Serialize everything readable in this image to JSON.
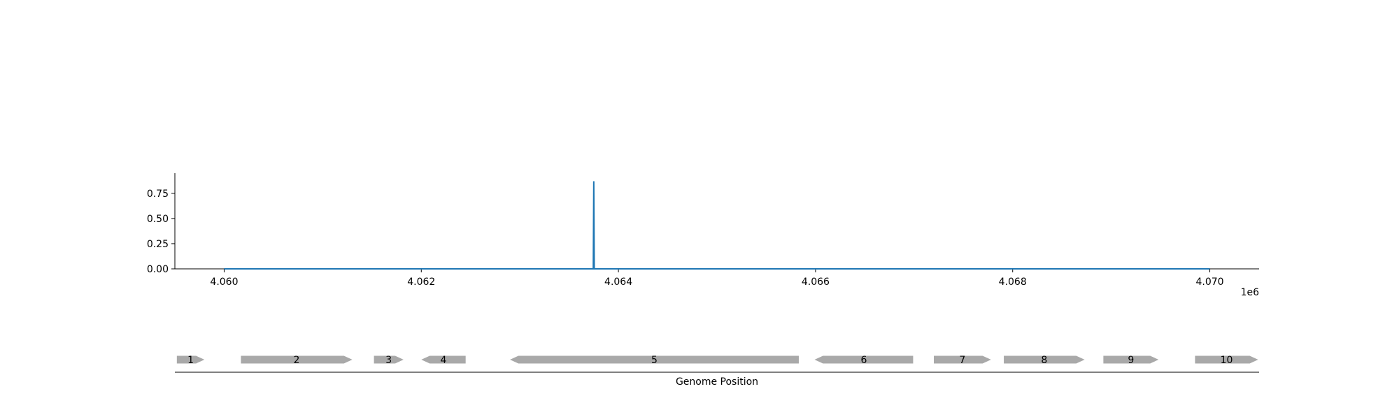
{
  "chart_data": [
    {
      "type": "line",
      "title": "",
      "xlabel": "",
      "ylabel": "",
      "x_offset_label": "1e6",
      "xlim": [
        4059500,
        4070500
      ],
      "ylim": [
        0,
        0.95
      ],
      "x_ticks": [
        4060000,
        4062000,
        4064000,
        4066000,
        4068000,
        4070000
      ],
      "x_tick_labels": [
        "4.060",
        "4.062",
        "4.064",
        "4.066",
        "4.068",
        "4.070"
      ],
      "y_ticks": [
        0,
        0.25,
        0.5,
        0.75
      ],
      "y_tick_labels": [
        "0.00",
        "0.25",
        "0.50",
        "0.75"
      ],
      "grid": false,
      "series": [
        {
          "color": "#1f77b4",
          "x": [
            4060000,
            4063745,
            4063750,
            4063755,
            4070000
          ],
          "y": [
            0,
            0,
            0.87,
            0,
            0
          ]
        }
      ]
    },
    {
      "type": "gene-track",
      "xlabel": "Genome Position",
      "genes": [
        {
          "label": "1",
          "start": 4059520,
          "end": 4059800,
          "strand": "+",
          "color": "#a9a9a9"
        },
        {
          "label": "2",
          "start": 4060170,
          "end": 4061300,
          "strand": "+",
          "color": "#a9a9a9"
        },
        {
          "label": "3",
          "start": 4061520,
          "end": 4061820,
          "strand": "+",
          "color": "#a9a9a9"
        },
        {
          "label": "4",
          "start": 4062000,
          "end": 4062450,
          "strand": "-",
          "color": "#a9a9a9"
        },
        {
          "label": "5",
          "start": 4062900,
          "end": 4065830,
          "strand": "-",
          "color": "#a9a9a9"
        },
        {
          "label": "6",
          "start": 4065990,
          "end": 4066990,
          "strand": "-",
          "color": "#a9a9a9"
        },
        {
          "label": "7",
          "start": 4067200,
          "end": 4067780,
          "strand": "+",
          "color": "#a9a9a9"
        },
        {
          "label": "8",
          "start": 4067910,
          "end": 4068730,
          "strand": "+",
          "color": "#a9a9a9"
        },
        {
          "label": "9",
          "start": 4068920,
          "end": 4069480,
          "strand": "+",
          "color": "#a9a9a9"
        },
        {
          "label": "10",
          "start": 4069850,
          "end": 4070490,
          "strand": "+",
          "color": "#a9a9a9"
        }
      ]
    }
  ]
}
